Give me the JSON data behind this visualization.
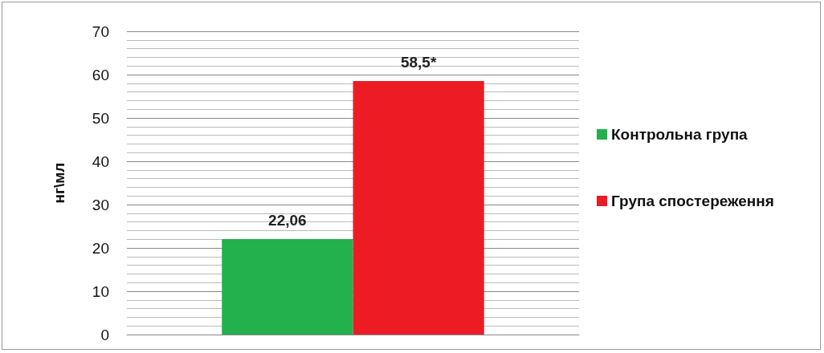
{
  "chart_data": {
    "type": "bar",
    "ylabel": "нг\\мл",
    "categories": [
      null
    ],
    "series": [
      {
        "name": "Контрольна група",
        "color": "#22b14c",
        "values": [
          22.06
        ],
        "value_labels": [
          "22,06"
        ]
      },
      {
        "name": "Група спостереження",
        "color": "#ed1c24",
        "values": [
          58.5
        ],
        "value_labels": [
          "58,5*"
        ]
      }
    ],
    "ylim": [
      0,
      70
    ],
    "yticks": [
      0,
      10,
      20,
      30,
      40,
      50,
      60,
      70
    ],
    "grid": "y",
    "legend": "right"
  }
}
